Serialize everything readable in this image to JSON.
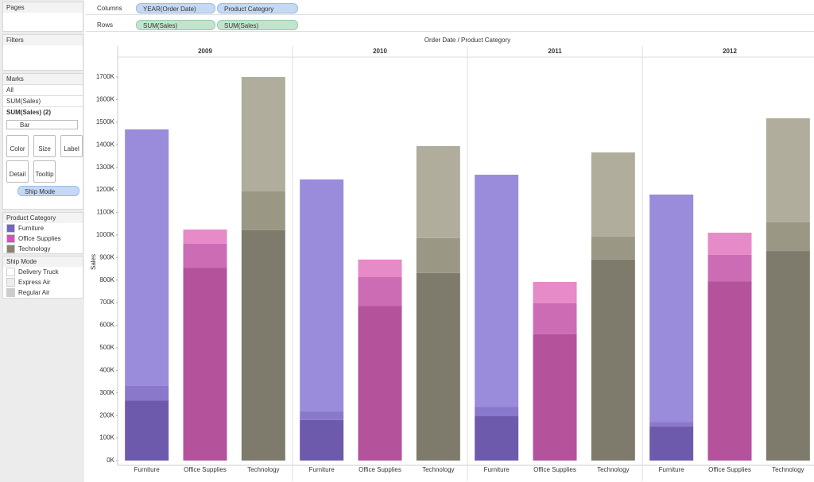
{
  "sidebar": {
    "pages": "Pages",
    "filters": "Filters",
    "marks": {
      "title": "Marks",
      "rows": [
        "All",
        "SUM(Sales)",
        "SUM(Sales) (2)"
      ],
      "mark_type": "Bar",
      "buttons": [
        "Color",
        "Size",
        "Label",
        "Detail",
        "Tooltip"
      ],
      "pill": "Ship Mode"
    }
  },
  "shelves": {
    "columns": {
      "label": "Columns",
      "pills": [
        "YEAR(Order Date)",
        "Product Category"
      ]
    },
    "rows": {
      "label": "Rows",
      "pills": [
        "SUM(Sales)",
        "SUM(Sales)"
      ]
    }
  },
  "chart_data": {
    "type": "stacked_bar",
    "header": "Order Date  /  Product Category",
    "ylabel": "Sales",
    "groups": [
      "2009",
      "2010",
      "2011",
      "2012"
    ],
    "categories": [
      "Furniture",
      "Office Supplies",
      "Technology",
      "Furniture",
      "Office Supplies",
      "Technology",
      "Furniture",
      "Office Supplies",
      "Technology",
      "Furniture",
      "Office Supplies",
      "Technology"
    ],
    "color_legend": {
      "title": "Product Category",
      "items": [
        "Furniture",
        "Office Supplies",
        "Technology"
      ],
      "colors": [
        "#7463c7",
        "#d64fc0",
        "#8c8473"
      ]
    },
    "series": [
      {
        "name": "Delivery Truck",
        "color": "#ffffff",
        "bar_colors": [
          "#6e5aad",
          "#b4529c",
          "#7e7b6c"
        ],
        "values": [
          267000,
          855000,
          1021000,
          180000,
          686000,
          831000,
          197000,
          560000,
          891000,
          151000,
          795000,
          929000
        ]
      },
      {
        "name": "Express Air",
        "color": "#eeeeee",
        "bar_colors": [
          "#8a78cc",
          "#cc6cb4",
          "#9a9885"
        ],
        "values": [
          64000,
          106000,
          172000,
          38000,
          127000,
          155000,
          42000,
          137000,
          102000,
          21000,
          117000,
          127000
        ]
      },
      {
        "name": "Regular Air",
        "color": "#cccccc",
        "bar_colors": [
          "#9b8bdb",
          "#e68ac8",
          "#b0ad9c"
        ],
        "values": [
          1137000,
          63000,
          507000,
          1028000,
          78000,
          408000,
          1028000,
          95000,
          373000,
          1007000,
          98000,
          461000
        ]
      }
    ],
    "series_legend_title": "Ship Mode",
    "ylim": [
      0,
      1700000
    ],
    "yticks": [
      {
        "value": 0,
        "label": "0K"
      },
      {
        "value": 100000,
        "label": "100K"
      },
      {
        "value": 200000,
        "label": "200K"
      },
      {
        "value": 300000,
        "label": "300K"
      },
      {
        "value": 400000,
        "label": "400K"
      },
      {
        "value": 500000,
        "label": "500K"
      },
      {
        "value": 600000,
        "label": "600K"
      },
      {
        "value": 700000,
        "label": "700K"
      },
      {
        "value": 800000,
        "label": "800K"
      },
      {
        "value": 900000,
        "label": "900K"
      },
      {
        "value": 1000000,
        "label": "1000K"
      },
      {
        "value": 1100000,
        "label": "1100K"
      },
      {
        "value": 1200000,
        "label": "1200K"
      },
      {
        "value": 1300000,
        "label": "1300K"
      },
      {
        "value": 1400000,
        "label": "1400K"
      },
      {
        "value": 1500000,
        "label": "1500K"
      },
      {
        "value": 1600000,
        "label": "1600K"
      },
      {
        "value": 1700000,
        "label": "1700K"
      }
    ]
  }
}
